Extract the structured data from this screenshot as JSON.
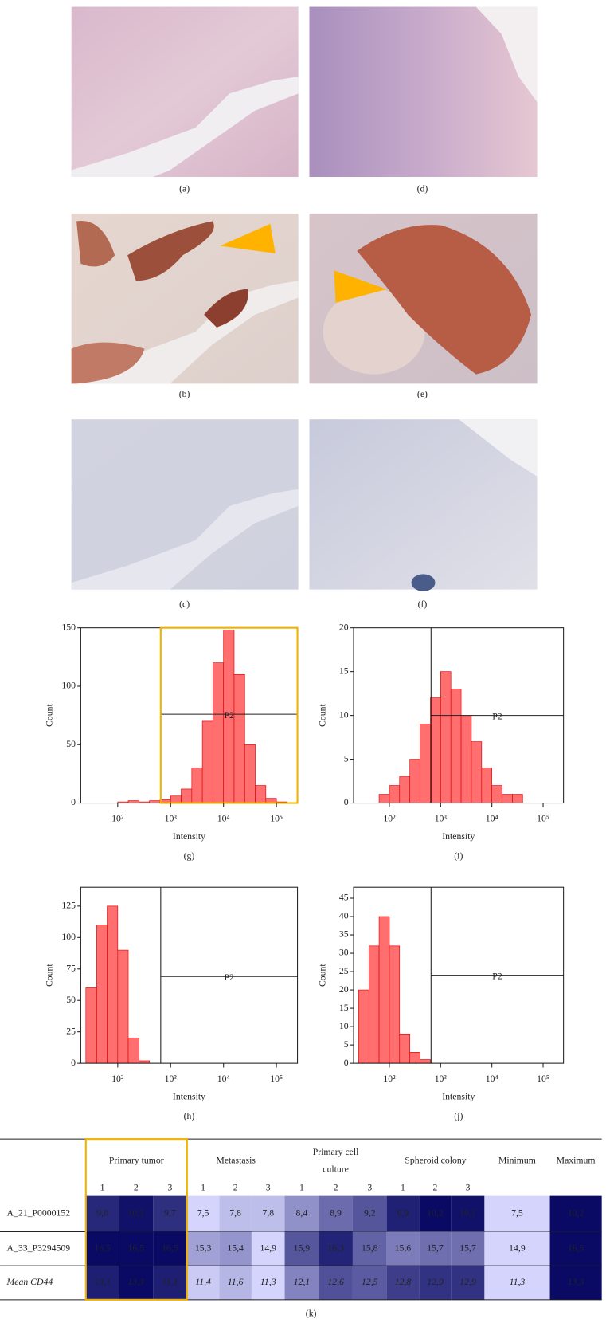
{
  "panels": [
    "(a)",
    "(d)",
    "(b)",
    "(e)",
    "(c)",
    "(f)"
  ],
  "chart_data": [
    {
      "type": "histogram",
      "label": "(g)",
      "xlabel": "Intensity",
      "ylabel": "Count",
      "color": "#ff6f6f",
      "highlight": "#f0b400",
      "log_x": true,
      "xlim": [
        20,
        250000
      ],
      "ylim": [
        0,
        150
      ],
      "yticks": [
        0,
        50,
        100,
        150
      ],
      "xticks": [
        {
          "value": 100,
          "label": "10²"
        },
        {
          "value": 1000,
          "label": "10³"
        },
        {
          "value": 10000,
          "label": "10⁴"
        },
        {
          "value": 100000,
          "label": "10⁵"
        }
      ],
      "gate": {
        "x": 650,
        "y": 76,
        "label": "P2"
      },
      "bins": [
        25,
        40,
        63,
        100,
        158,
        251,
        398,
        631,
        1000,
        1585,
        2512,
        3981,
        6310,
        10000,
        15849,
        25119,
        39811,
        63096,
        100000,
        158489,
        251189
      ],
      "counts": [
        0,
        0,
        0,
        1,
        2,
        1,
        2,
        3,
        6,
        12,
        30,
        70,
        120,
        148,
        110,
        50,
        15,
        4,
        1,
        0
      ]
    },
    {
      "type": "histogram",
      "label": "(i)",
      "xlabel": "Intensity",
      "ylabel": "Count",
      "color": "#ff6f6f",
      "log_x": true,
      "xlim": [
        20,
        250000
      ],
      "ylim": [
        0,
        20
      ],
      "yticks": [
        0,
        5,
        10,
        15,
        20
      ],
      "xticks": [
        {
          "value": 100,
          "label": "10²"
        },
        {
          "value": 1000,
          "label": "10³"
        },
        {
          "value": 10000,
          "label": "10⁴"
        },
        {
          "value": 100000,
          "label": "10⁵"
        }
      ],
      "gate": {
        "x": 650,
        "y": 10,
        "label": "P2"
      },
      "bins": [
        25,
        40,
        63,
        100,
        158,
        251,
        398,
        631,
        1000,
        1585,
        2512,
        3981,
        6310,
        10000,
        15849,
        25119,
        39811,
        63096,
        100000,
        158489,
        251189
      ],
      "counts": [
        0,
        0,
        1,
        2,
        3,
        5,
        9,
        12,
        15,
        13,
        10,
        7,
        4,
        2,
        1,
        1,
        0,
        0,
        0,
        0
      ]
    },
    {
      "type": "histogram",
      "label": "(h)",
      "xlabel": "Intensity",
      "ylabel": "Count",
      "color": "#ff6f6f",
      "log_x": true,
      "xlim": [
        20,
        250000
      ],
      "ylim": [
        0,
        140
      ],
      "yticks": [
        0,
        25,
        50,
        75,
        100,
        125
      ],
      "xticks": [
        {
          "value": 100,
          "label": "10²"
        },
        {
          "value": 1000,
          "label": "10³"
        },
        {
          "value": 10000,
          "label": "10⁴"
        },
        {
          "value": 100000,
          "label": "10⁵"
        }
      ],
      "gate": {
        "x": 650,
        "y": 69,
        "label": "P2"
      },
      "bins": [
        25,
        40,
        63,
        100,
        158,
        251,
        398,
        631,
        1000,
        1585,
        2512,
        3981,
        6310,
        10000,
        15849,
        25119,
        39811,
        63096,
        100000,
        158489,
        251189
      ],
      "counts": [
        60,
        110,
        125,
        90,
        20,
        2,
        0,
        0,
        0,
        0,
        0,
        0,
        0,
        0,
        0,
        0,
        0,
        0,
        0,
        0
      ]
    },
    {
      "type": "histogram",
      "label": "(j)",
      "xlabel": "Intensity",
      "ylabel": "Count",
      "color": "#ff6f6f",
      "log_x": true,
      "xlim": [
        20,
        250000
      ],
      "ylim": [
        0,
        48
      ],
      "yticks": [
        0,
        5,
        10,
        15,
        20,
        25,
        30,
        35,
        40,
        45
      ],
      "xticks": [
        {
          "value": 100,
          "label": "10²"
        },
        {
          "value": 1000,
          "label": "10³"
        },
        {
          "value": 10000,
          "label": "10⁴"
        },
        {
          "value": 100000,
          "label": "10⁵"
        }
      ],
      "gate": {
        "x": 650,
        "y": 24,
        "label": "P2"
      },
      "bins": [
        25,
        40,
        63,
        100,
        158,
        251,
        398,
        631,
        1000,
        1585,
        2512,
        3981,
        6310,
        10000,
        15849,
        25119,
        39811,
        63096,
        100000,
        158489,
        251189
      ],
      "counts": [
        20,
        32,
        40,
        32,
        8,
        3,
        1,
        0,
        0,
        0,
        0,
        0,
        0,
        0,
        0,
        0,
        0,
        0,
        0,
        0
      ]
    }
  ],
  "table": {
    "label": "(k)",
    "highlight": "#f0b400",
    "color_scale": [
      "#d4d4fc",
      "#0a0a64"
    ],
    "groups": [
      {
        "name": "Primary tumor",
        "subcolumns": [
          "1",
          "2",
          "3"
        ]
      },
      {
        "name": "Metastasis",
        "subcolumns": [
          "1",
          "2",
          "3"
        ]
      },
      {
        "name": "Primary cell culture",
        "subcolumns": [
          "1",
          "2",
          "3"
        ]
      },
      {
        "name": "Spheroid colony",
        "subcolumns": [
          "1",
          "2",
          "3"
        ]
      },
      {
        "name": "Minimum",
        "subcolumns": []
      },
      {
        "name": "Maximum",
        "subcolumns": []
      }
    ],
    "rows": [
      {
        "name": "A_21_P0000152",
        "style": "normal",
        "values": [
          "9,8",
          "10,1",
          "9,7",
          "7,5",
          "7,8",
          "7,8",
          "8,4",
          "8,9",
          "9,2",
          "9,9",
          "10,2",
          "10,1",
          "7,5",
          "10,2"
        ]
      },
      {
        "name": "A_33_P3294509",
        "style": "normal",
        "values": [
          "16,5",
          "16,5",
          "16,5",
          "15,3",
          "15,4",
          "14,9",
          "15,9",
          "16,3",
          "15,8",
          "15,6",
          "15,7",
          "15,7",
          "14,9",
          "16,5"
        ]
      },
      {
        "name": "Mean CD44",
        "style": "italic",
        "values": [
          "13,1",
          "13,3",
          "13,1",
          "11,4",
          "11,6",
          "11,3",
          "12,1",
          "12,6",
          "12,5",
          "12,8",
          "12,9",
          "12,9",
          "11,3",
          "13,3"
        ]
      }
    ]
  }
}
